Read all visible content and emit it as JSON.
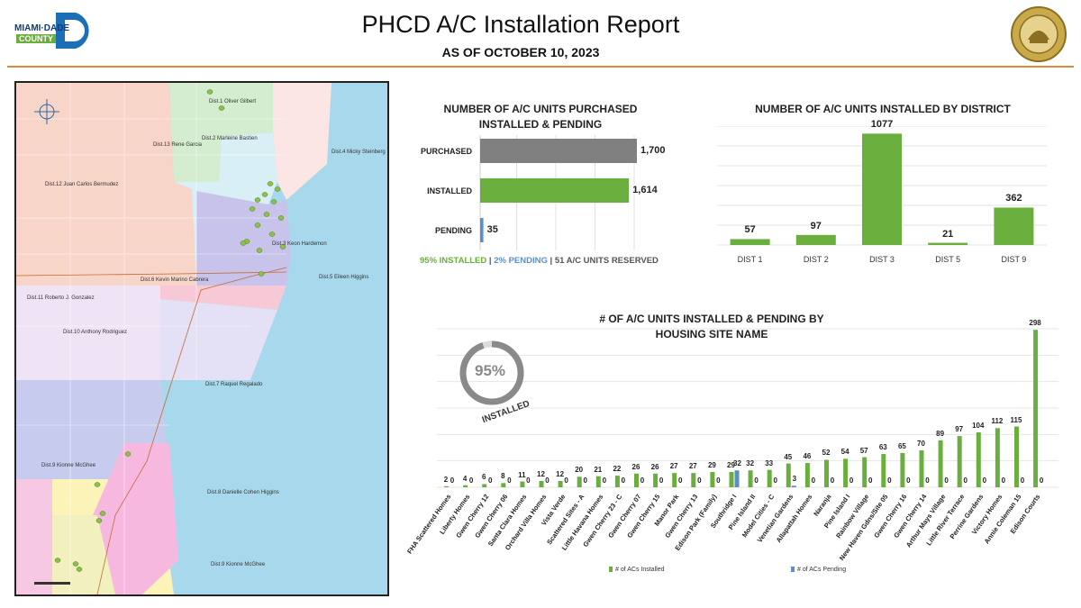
{
  "header": {
    "title": "PHCD A/C Installation Report",
    "subtitle": "AS OF OCTOBER 10, 2023",
    "logo_text_top": "MIAMI·DADE",
    "logo_text_bottom": "COUNTY",
    "seal_text": "MIAMI-DADE COUNTY FLORIDA"
  },
  "colors": {
    "green": "#6aae3e",
    "gray": "#808080",
    "blue": "#5b8fc7",
    "accent_rule": "#e08a3c"
  },
  "map": {
    "labels": [
      "Dist.1 Oliver Gilbert",
      "Dist.2 Marleine Bastien",
      "Dist.13 Rene Garcia",
      "Dist.4 Micky Steinberg",
      "Dist.12 Juan Carlos Bermudez",
      "Dist.3 Keon Hardemon",
      "Dist.6 Kevin Marino Cabrera",
      "Dist.5 Eileen Higgins",
      "Dist.11 Roberto J. Gonzalez",
      "Dist.10 Anthony Rodriguez",
      "Dist.7 Raquel Regalado",
      "Dist.8 Danielle Cohen Higgins",
      "Dist.9 Kionne McGhee",
      "Dist.9 Kionne McGhee"
    ]
  },
  "chart_data": [
    {
      "type": "bar",
      "orientation": "horizontal",
      "title": "NUMBER OF A/C UNITS PURCHASED INSTALLED & PENDING",
      "categories": [
        "PURCHASED",
        "INSTALLED",
        "PENDING"
      ],
      "values": [
        1700,
        1614,
        35
      ],
      "value_labels": [
        "1,700",
        "1,614",
        "35"
      ],
      "colors": [
        "#808080",
        "#6aae3e",
        "#5b8fc7"
      ],
      "xlim": [
        0,
        1700
      ],
      "grid": true,
      "footer": {
        "installed": "95% INSTALLED",
        "sep1": "|",
        "pending": "2% PENDING",
        "sep2": "|",
        "reserved": "51 A/C UNITS RESERVED"
      }
    },
    {
      "type": "bar",
      "title": "NUMBER OF A/C UNITS INSTALLED BY DISTRICT",
      "categories": [
        "DIST 1",
        "DIST 2",
        "DIST 3",
        "DIST 5",
        "DIST 9"
      ],
      "values": [
        57,
        97,
        1077,
        21,
        362
      ],
      "ylim": [
        0,
        1150
      ],
      "grid": true
    },
    {
      "type": "bar",
      "title": "# OF A/C UNITS INSTALLED & PENDING BY HOUSING SITE NAME",
      "categories": [
        "FHA Scattered Homes",
        "Liberty Homes",
        "Gwen Cherry 12",
        "Gwen Cherry 06",
        "Santa Clara Homes",
        "Orchard Villa Homes",
        "Vista Verde",
        "Scattered Sites - A",
        "Little Havana Homes",
        "Gwen Cherry 23 - C",
        "Gwen Cherry 07",
        "Gwen Cherry 15",
        "Manor Park",
        "Gwen Cherry 13",
        "Edison Park (Family)",
        "Southridge I",
        "Pine Island II",
        "Model Cities - C",
        "Venetian Gardens",
        "Allapattah Homes",
        "Naranja",
        "Pine Island I",
        "Rainbow Village",
        "New Haven Gdns/Site 05",
        "Gwen Cherry 16",
        "Gwen Cherry 14",
        "Arthur Mays Village",
        "Little River Terrace",
        "Perrine Gardens",
        "Victory Homes",
        "Annie Coleman 15",
        "Edison Courts"
      ],
      "series": [
        {
          "name": "# of ACs Installed",
          "values": [
            2,
            4,
            6,
            8,
            11,
            12,
            12,
            20,
            21,
            22,
            26,
            26,
            27,
            27,
            29,
            29,
            32,
            33,
            45,
            46,
            52,
            54,
            57,
            63,
            65,
            70,
            89,
            97,
            104,
            112,
            115,
            298
          ]
        },
        {
          "name": "# of ACs Pending",
          "values": [
            0,
            0,
            0,
            0,
            0,
            0,
            0,
            0,
            0,
            0,
            0,
            0,
            0,
            0,
            0,
            32,
            0,
            0,
            3,
            0,
            0,
            0,
            0,
            0,
            0,
            0,
            0,
            0,
            0,
            0,
            0,
            0
          ]
        }
      ],
      "ylim": [
        0,
        300
      ],
      "grid": true,
      "legend": "bottom",
      "donut": {
        "percent": 95,
        "label": "95%",
        "caption": "INSTALLED"
      }
    }
  ]
}
